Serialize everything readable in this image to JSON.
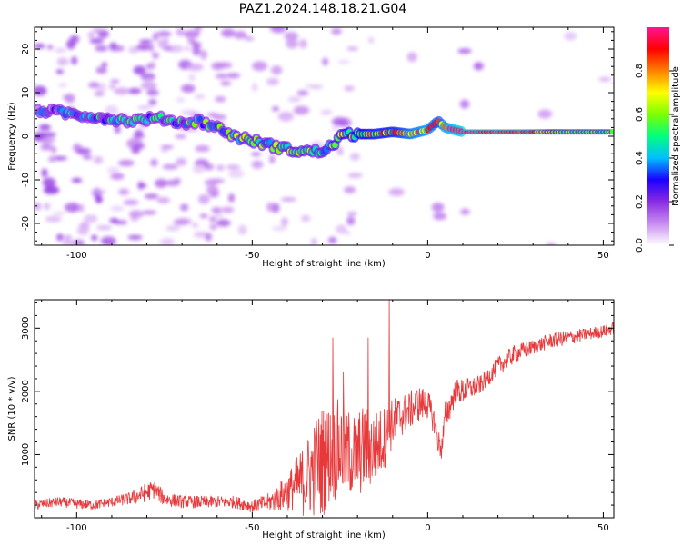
{
  "figure_title": "PAZ1.2024.148.18.21.G04",
  "colors": {
    "snr_line": "#e8383a",
    "frame": "#000000"
  },
  "chart_data": [
    {
      "type": "heatmap",
      "title": "PAZ1.2024.148.18.21.G04",
      "xlabel": "Height of straight line (km)",
      "ylabel": "Frequency (Hz)",
      "xlim": [
        -112,
        53
      ],
      "ylim": [
        -25,
        25
      ],
      "x_ticks": [
        -100,
        -50,
        0,
        50
      ],
      "y_ticks": [
        -20,
        -10,
        0,
        10,
        20
      ],
      "grid": false,
      "colorbar": {
        "label": "Normalized spectral amplitude",
        "range": [
          0,
          1
        ],
        "ticks": [
          "0.0",
          "0.2",
          "0.4",
          "0.6",
          "0.8"
        ],
        "colormap": [
          "#ffffff",
          "#c88cf0",
          "#8a2be2",
          "#1b00ff",
          "#00bfff",
          "#00ff80",
          "#7cff00",
          "#ffff00",
          "#ff8000",
          "#ff0000",
          "#ff1493"
        ]
      },
      "ridge": {
        "x": [
          -112,
          -105,
          -100,
          -95,
          -90,
          -85,
          -80,
          -75,
          -70,
          -65,
          -60,
          -55,
          -50,
          -45,
          -40,
          -35,
          -30,
          -27,
          -25,
          -20,
          -15,
          -10,
          -5,
          0,
          3,
          5,
          10,
          20,
          30,
          40,
          53
        ],
        "frequency": [
          6,
          5.5,
          5,
          4.5,
          4,
          3.5,
          4,
          4,
          3,
          3.5,
          2,
          0,
          -1,
          -2,
          -3,
          -3.5,
          -3.5,
          -2,
          0,
          0.5,
          0.5,
          1,
          0.5,
          1.5,
          3.5,
          2,
          1,
          1,
          1,
          1,
          1
        ],
        "amplitude": [
          0.25,
          0.25,
          0.3,
          0.35,
          0.35,
          0.4,
          0.4,
          0.4,
          0.4,
          0.45,
          0.45,
          0.5,
          0.5,
          0.5,
          0.5,
          0.5,
          0.5,
          0.55,
          0.6,
          0.65,
          0.7,
          0.7,
          0.8,
          0.85,
          0.75,
          0.85,
          0.95,
          0.95,
          0.85,
          0.55,
          0.55
        ]
      }
    },
    {
      "type": "line",
      "xlabel": "Height of straight line (km)",
      "ylabel": "SNR (10 * v/v)",
      "xlim": [
        -112,
        53
      ],
      "ylim": [
        0,
        3450
      ],
      "x_ticks": [
        -100,
        -50,
        0,
        50
      ],
      "y_ticks": [
        1000,
        2000,
        3000
      ],
      "grid": false,
      "series": [
        {
          "x": [
            -112,
            -105,
            -100,
            -95,
            -90,
            -85,
            -80,
            -78,
            -75,
            -70,
            -65,
            -60,
            -55,
            -50,
            -45,
            -40,
            -38,
            -35,
            -32,
            -30,
            -28,
            -25,
            -22,
            -20,
            -18,
            -15,
            -12,
            -10,
            -8,
            -5,
            -3,
            0,
            2,
            3,
            4,
            5,
            8,
            10,
            15,
            20,
            25,
            30,
            35,
            40,
            45,
            50,
            53
          ],
          "y": [
            200,
            250,
            220,
            200,
            250,
            300,
            400,
            450,
            300,
            250,
            250,
            250,
            250,
            180,
            250,
            400,
            500,
            600,
            800,
            900,
            1000,
            1100,
            1000,
            1000,
            1100,
            1100,
            1300,
            1500,
            1600,
            1700,
            1800,
            1800,
            1500,
            1200,
            1100,
            1600,
            2000,
            2000,
            2100,
            2400,
            2600,
            2700,
            2800,
            2850,
            2900,
            2950,
            3000
          ],
          "spread": [
            80,
            80,
            80,
            80,
            80,
            100,
            150,
            150,
            120,
            100,
            100,
            100,
            100,
            100,
            150,
            300,
            400,
            600,
            800,
            900,
            800,
            800,
            700,
            700,
            700,
            600,
            500,
            400,
            350,
            300,
            300,
            250,
            200,
            200,
            200,
            250,
            200,
            200,
            150,
            150,
            150,
            120,
            120,
            120,
            100,
            100,
            100
          ],
          "spikes": [
            {
              "x": -27,
              "y": 2850
            },
            {
              "x": -24,
              "y": 2300
            },
            {
              "x": -17,
              "y": 2850
            },
            {
              "x": -11,
              "y": 3450
            }
          ]
        }
      ]
    }
  ]
}
